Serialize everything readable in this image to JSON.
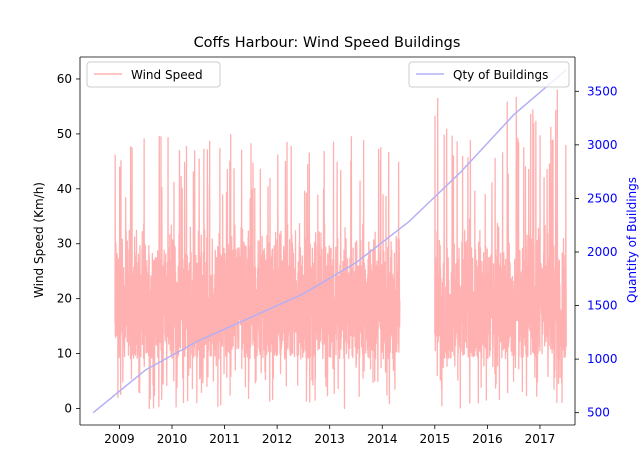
{
  "chart_data": {
    "type": "line",
    "title": "Coffs Harbour:  Wind Speed Buildings",
    "xlabel": "",
    "ylabel": "Wind Speed (Km/h)",
    "ylabel_right": "Quantity of Buildings",
    "x_ticks": [
      "2009",
      "2010",
      "2011",
      "2012",
      "2013",
      "2014",
      "2015",
      "2016",
      "2017"
    ],
    "xlim": [
      "2008-04",
      "2017-09"
    ],
    "ylim_left": [
      -3,
      64
    ],
    "yticks_left": [
      0,
      10,
      20,
      30,
      40,
      50,
      60
    ],
    "ylim_right": [
      385,
      3820
    ],
    "yticks_right": [
      500,
      1000,
      1500,
      2000,
      2500,
      3000,
      3500
    ],
    "legend_left": {
      "label": "Wind Speed",
      "placement": "upper left"
    },
    "legend_right": {
      "label": "Qty of Buildings",
      "placement": "upper right"
    },
    "series": [
      {
        "name": "Wind Speed",
        "axis": "left",
        "color": "#ffb0b0",
        "style": "dense daily line",
        "segments": [
          {
            "start": "2008-12",
            "end": "2014-05",
            "min": 0,
            "max": 50,
            "typical_low": 9,
            "typical_high": 35
          },
          {
            "start": "2015-01",
            "end": "2017-07",
            "min": 0,
            "max": 58,
            "typical_low": 9,
            "typical_high": 35
          }
        ]
      },
      {
        "name": "Qty of Buildings",
        "axis": "right",
        "color": "#b3b0f5",
        "points": [
          {
            "x": "2008-07",
            "y": 500
          },
          {
            "x": "2009-07",
            "y": 900
          },
          {
            "x": "2010-07",
            "y": 1170
          },
          {
            "x": "2011-07",
            "y": 1390
          },
          {
            "x": "2012-07",
            "y": 1610
          },
          {
            "x": "2013-07",
            "y": 1900
          },
          {
            "x": "2014-07",
            "y": 2280
          },
          {
            "x": "2015-07",
            "y": 2750
          },
          {
            "x": "2016-07",
            "y": 3280
          },
          {
            "x": "2017-07",
            "y": 3700
          }
        ]
      }
    ],
    "colors": {
      "left_axis": "#000000",
      "right_axis": "#0000ff"
    }
  }
}
